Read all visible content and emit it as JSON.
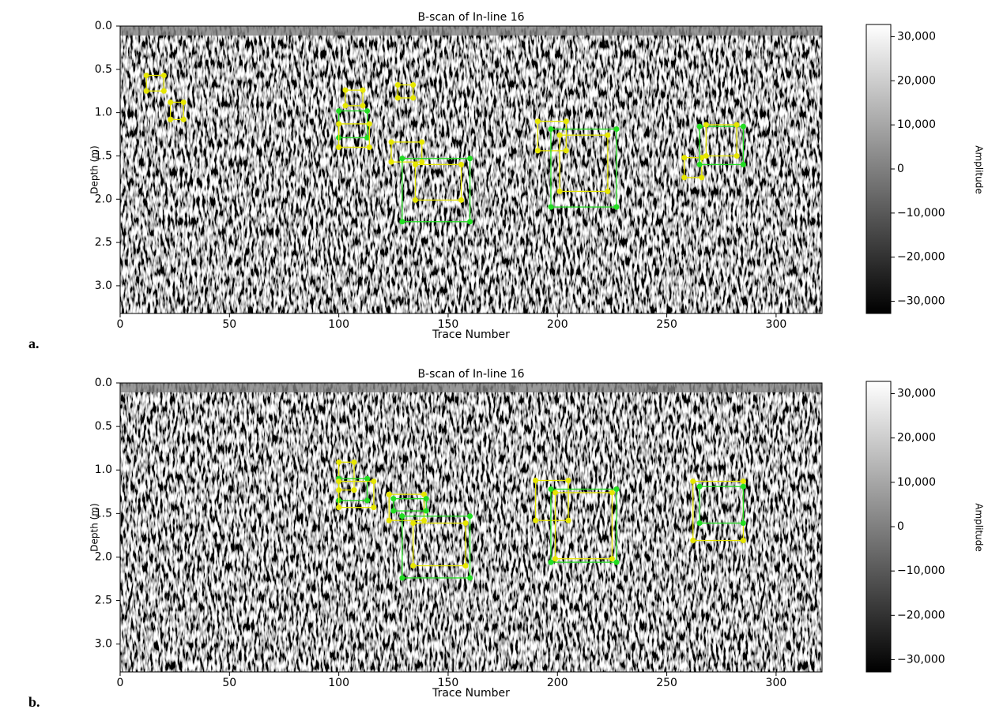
{
  "chart_data": [
    {
      "type": "heatmap",
      "panel_label": "a.",
      "title": "B-scan of In-line 16",
      "xlabel": "Trace Number",
      "ylabel": "Depth (m)",
      "colorbar_label": "Amplitude",
      "colormap": "gray",
      "xlim": [
        0,
        321
      ],
      "xticks": [
        0,
        50,
        100,
        150,
        200,
        250,
        300
      ],
      "ylim": [
        3.32,
        0
      ],
      "yticks": [
        {
          "value": 0,
          "label": "0.0"
        },
        0.5,
        {
          "value": 1,
          "label": "1.0"
        },
        1.5,
        {
          "value": 2,
          "label": "2.0"
        },
        2.5,
        {
          "value": 3,
          "label": "3.0"
        }
      ],
      "clim": [
        -32768,
        32767
      ],
      "cticks": [
        {
          "value": 30000,
          "label": "30,000"
        },
        {
          "value": 20000,
          "label": "20,000"
        },
        {
          "value": 10000,
          "label": "10,000"
        },
        0,
        {
          "value": -10000,
          "label": "−10,000"
        },
        {
          "value": -20000,
          "label": "−20,000"
        },
        {
          "value": -30000,
          "label": "−30,000"
        }
      ],
      "boxes": [
        {
          "x": [
            12,
            20
          ],
          "y": [
            0.57,
            0.75
          ],
          "color": "#e6e600"
        },
        {
          "x": [
            23,
            29
          ],
          "y": [
            0.88,
            1.08
          ],
          "color": "#e6e600"
        },
        {
          "x": [
            103,
            111
          ],
          "y": [
            0.74,
            0.92
          ],
          "color": "#e6e600"
        },
        {
          "x": [
            100,
            113
          ],
          "y": [
            0.98,
            1.29
          ],
          "color": "#22dd22"
        },
        {
          "x": [
            100,
            114
          ],
          "y": [
            1.13,
            1.4
          ],
          "color": "#e6e600"
        },
        {
          "x": [
            127,
            134
          ],
          "y": [
            0.68,
            0.83
          ],
          "color": "#e6e600"
        },
        {
          "x": [
            124,
            138
          ],
          "y": [
            1.34,
            1.57
          ],
          "color": "#e6e600"
        },
        {
          "x": [
            129,
            160
          ],
          "y": [
            1.53,
            2.26
          ],
          "color": "#22dd22"
        },
        {
          "x": [
            135,
            156
          ],
          "y": [
            1.6,
            2.01
          ],
          "color": "#e6e600"
        },
        {
          "x": [
            191,
            204
          ],
          "y": [
            1.1,
            1.44
          ],
          "color": "#e6e600"
        },
        {
          "x": [
            197,
            227
          ],
          "y": [
            1.19,
            2.09
          ],
          "color": "#22dd22"
        },
        {
          "x": [
            201,
            223
          ],
          "y": [
            1.26,
            1.91
          ],
          "color": "#e6e600"
        },
        {
          "x": [
            258,
            266
          ],
          "y": [
            1.52,
            1.75
          ],
          "color": "#e6e600"
        },
        {
          "x": [
            265,
            285
          ],
          "y": [
            1.16,
            1.6
          ],
          "color": "#22dd22"
        },
        {
          "x": [
            268,
            282
          ],
          "y": [
            1.14,
            1.5
          ],
          "color": "#e6e600"
        }
      ]
    },
    {
      "type": "heatmap",
      "panel_label": "b.",
      "title": "B-scan of In-line 16",
      "xlabel": "Trace Number",
      "ylabel": "Depth (m)",
      "colorbar_label": "Amplitude",
      "colormap": "gray",
      "xlim": [
        0,
        321
      ],
      "xticks": [
        0,
        50,
        100,
        150,
        200,
        250,
        300
      ],
      "ylim": [
        3.32,
        0
      ],
      "yticks": [
        {
          "value": 0,
          "label": "0.0"
        },
        0.5,
        {
          "value": 1,
          "label": "1.0"
        },
        1.5,
        {
          "value": 2,
          "label": "2.0"
        },
        2.5,
        {
          "value": 3,
          "label": "3.0"
        }
      ],
      "clim": [
        -32768,
        32767
      ],
      "cticks": [
        {
          "value": 30000,
          "label": "30,000"
        },
        {
          "value": 20000,
          "label": "20,000"
        },
        {
          "value": 10000,
          "label": "10,000"
        },
        0,
        {
          "value": -10000,
          "label": "−10,000"
        },
        {
          "value": -20000,
          "label": "−20,000"
        },
        {
          "value": -30000,
          "label": "−30,000"
        }
      ],
      "boxes": [
        {
          "x": [
            100,
            107
          ],
          "y": [
            0.91,
            1.23
          ],
          "color": "#e6e600"
        },
        {
          "x": [
            100,
            113
          ],
          "y": [
            1.1,
            1.35
          ],
          "color": "#22dd22"
        },
        {
          "x": [
            100,
            116
          ],
          "y": [
            1.13,
            1.43
          ],
          "color": "#e6e600"
        },
        {
          "x": [
            123,
            139
          ],
          "y": [
            1.28,
            1.58
          ],
          "color": "#e6e600"
        },
        {
          "x": [
            125,
            140
          ],
          "y": [
            1.33,
            1.47
          ],
          "color": "#22dd22"
        },
        {
          "x": [
            129,
            160
          ],
          "y": [
            1.53,
            2.24
          ],
          "color": "#22dd22"
        },
        {
          "x": [
            134,
            158
          ],
          "y": [
            1.61,
            2.1
          ],
          "color": "#e6e600"
        },
        {
          "x": [
            190,
            205
          ],
          "y": [
            1.12,
            1.58
          ],
          "color": "#e6e600"
        },
        {
          "x": [
            197,
            227
          ],
          "y": [
            1.22,
            2.06
          ],
          "color": "#22dd22"
        },
        {
          "x": [
            199,
            225
          ],
          "y": [
            1.26,
            2.02
          ],
          "color": "#e6e600"
        },
        {
          "x": [
            262,
            285
          ],
          "y": [
            1.13,
            1.81
          ],
          "color": "#e6e600"
        },
        {
          "x": [
            265,
            285
          ],
          "y": [
            1.19,
            1.61
          ],
          "color": "#22dd22"
        }
      ]
    }
  ]
}
